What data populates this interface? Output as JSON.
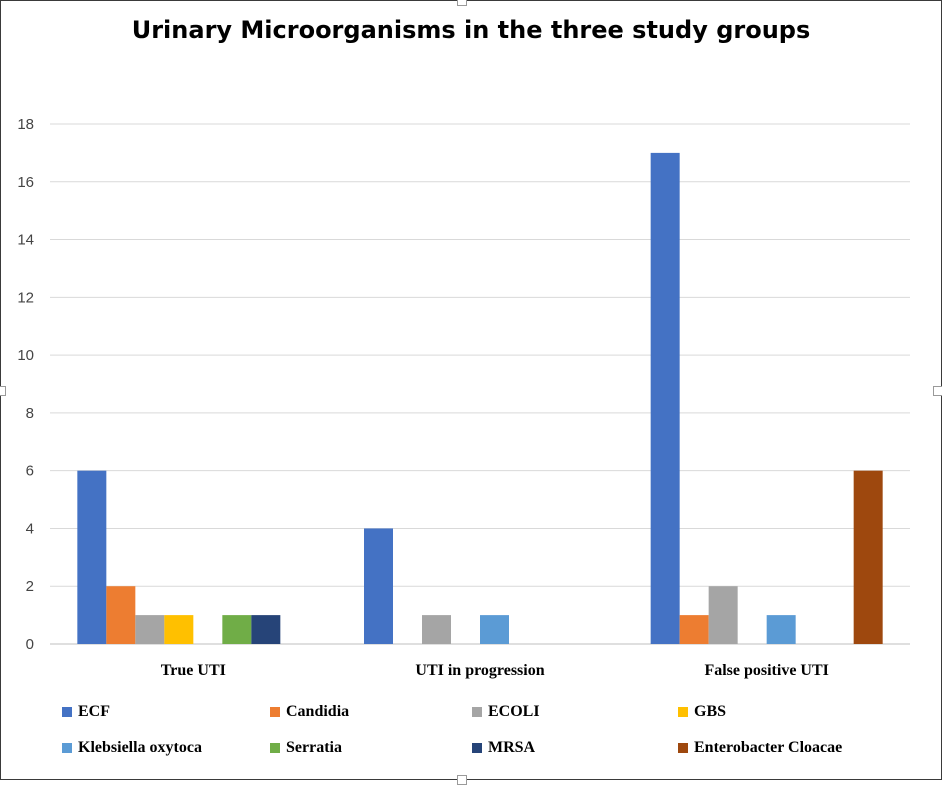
{
  "chart_data": {
    "type": "bar",
    "title": "Urinary Microorganisms in the three study groups",
    "categories": [
      "True UTI",
      "UTI in progression",
      "False positive UTI"
    ],
    "ylim": [
      0,
      18
    ],
    "yticks": [
      0,
      2,
      4,
      6,
      8,
      10,
      12,
      14,
      16,
      18
    ],
    "grid": true,
    "legend_position": "bottom",
    "series": [
      {
        "name": "ECF",
        "color": "#4472C4",
        "values": [
          6,
          4,
          17
        ]
      },
      {
        "name": "Candidia",
        "color": "#ED7D31",
        "values": [
          2,
          0,
          1
        ]
      },
      {
        "name": "ECOLI",
        "color": "#A5A5A5",
        "values": [
          1,
          1,
          2
        ]
      },
      {
        "name": "GBS",
        "color": "#FFC000",
        "values": [
          1,
          0,
          0
        ]
      },
      {
        "name": "Klebsiella oxytoca",
        "color": "#5B9BD5",
        "values": [
          0,
          1,
          1
        ]
      },
      {
        "name": "Serratia",
        "color": "#70AD47",
        "values": [
          1,
          0,
          0
        ]
      },
      {
        "name": "MRSA",
        "color": "#264478",
        "values": [
          1,
          0,
          0
        ]
      },
      {
        "name": "Enterobacter Cloacae",
        "color": "#9E480E",
        "values": [
          0,
          0,
          6
        ]
      }
    ]
  }
}
